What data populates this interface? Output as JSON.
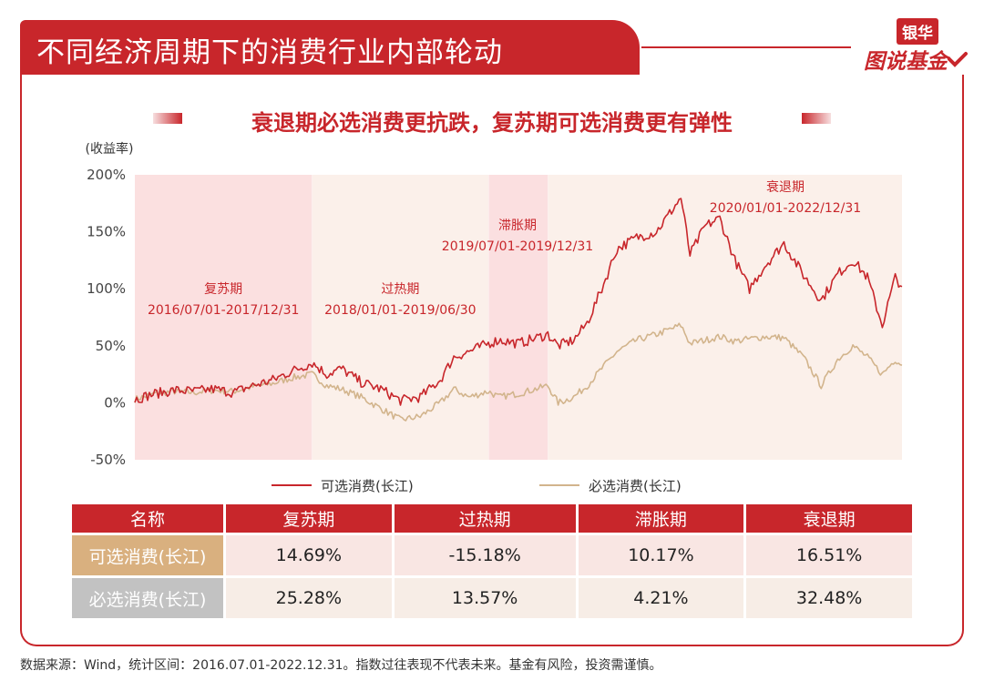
{
  "header": {
    "title": "不同经济周期下的消费行业内部轮动",
    "logo_top": "银华",
    "logo_bottom": "图说基金"
  },
  "subtitle": "衰退期必选消费更抗跌，复苏期可选消费更有弹性",
  "colors": {
    "accent": "#c8262b",
    "optional_series": "#c8262b",
    "staples_series": "#d2b48c",
    "recovery_bg": "#fbe0e0",
    "overheat_bg": "#fbf0ea",
    "stagflation_bg": "#fbdfe0",
    "recession_bg": "#fbf0ea"
  },
  "chart_data": {
    "type": "line",
    "ylabel": "(收益率)",
    "y_ticks": [
      "200%",
      "150%",
      "100%",
      "50%",
      "0%",
      "-50%"
    ],
    "ylim": [
      -50,
      200
    ],
    "xlim": [
      "2016-07-01",
      "2022-12-31"
    ],
    "periods": [
      {
        "name": "复苏期",
        "range": "2016/07/01-2017/12/31",
        "start": "2016-07-01",
        "end": "2017-12-31"
      },
      {
        "name": "过热期",
        "range": "2018/01/01-2019/06/30",
        "start": "2018-01-01",
        "end": "2019-06-30"
      },
      {
        "name": "滞胀期",
        "range": "2019/07/01-2019/12/31",
        "start": "2019-07-01",
        "end": "2019-12-31"
      },
      {
        "name": "衰退期",
        "range": "2020/01/01-2022/12/31",
        "start": "2020-01-01",
        "end": "2022-12-31"
      }
    ],
    "series": [
      {
        "name": "可选消费(长江)",
        "points": [
          [
            "2016-07-01",
            3
          ],
          [
            "2016-09-01",
            8
          ],
          [
            "2016-11-01",
            11
          ],
          [
            "2017-01-01",
            10
          ],
          [
            "2017-03-01",
            12
          ],
          [
            "2017-05-01",
            9
          ],
          [
            "2017-07-01",
            15
          ],
          [
            "2017-09-01",
            20
          ],
          [
            "2017-11-01",
            28
          ],
          [
            "2018-01-01",
            35
          ],
          [
            "2018-02-15",
            25
          ],
          [
            "2018-04-01",
            30
          ],
          [
            "2018-06-01",
            18
          ],
          [
            "2018-08-01",
            12
          ],
          [
            "2018-10-01",
            2
          ],
          [
            "2018-12-01",
            5
          ],
          [
            "2019-02-01",
            20
          ],
          [
            "2019-03-15",
            40
          ],
          [
            "2019-05-01",
            45
          ],
          [
            "2019-06-30",
            52
          ],
          [
            "2019-08-01",
            55
          ],
          [
            "2019-10-01",
            52
          ],
          [
            "2019-12-31",
            60
          ],
          [
            "2020-02-01",
            50
          ],
          [
            "2020-03-20",
            55
          ],
          [
            "2020-05-01",
            70
          ],
          [
            "2020-06-15",
            100
          ],
          [
            "2020-08-01",
            135
          ],
          [
            "2020-10-01",
            145
          ],
          [
            "2020-12-01",
            150
          ],
          [
            "2021-02-15",
            180
          ],
          [
            "2021-03-15",
            130
          ],
          [
            "2021-05-01",
            155
          ],
          [
            "2021-06-15",
            162
          ],
          [
            "2021-08-01",
            125
          ],
          [
            "2021-09-15",
            100
          ],
          [
            "2021-11-01",
            120
          ],
          [
            "2021-12-31",
            140
          ],
          [
            "2022-03-01",
            112
          ],
          [
            "2022-04-25",
            90
          ],
          [
            "2022-06-15",
            113
          ],
          [
            "2022-08-01",
            125
          ],
          [
            "2022-09-15",
            110
          ],
          [
            "2022-10-31",
            68
          ],
          [
            "2022-12-10",
            110
          ],
          [
            "2022-12-31",
            102
          ]
        ]
      },
      {
        "name": "必选消费(长江)",
        "points": [
          [
            "2016-07-01",
            3
          ],
          [
            "2016-09-01",
            8
          ],
          [
            "2016-11-01",
            10
          ],
          [
            "2017-01-01",
            9
          ],
          [
            "2017-03-01",
            11
          ],
          [
            "2017-05-01",
            10
          ],
          [
            "2017-07-01",
            14
          ],
          [
            "2017-09-01",
            17
          ],
          [
            "2017-11-01",
            22
          ],
          [
            "2018-01-01",
            25
          ],
          [
            "2018-02-15",
            15
          ],
          [
            "2018-04-01",
            12
          ],
          [
            "2018-06-01",
            5
          ],
          [
            "2018-08-01",
            -5
          ],
          [
            "2018-10-01",
            -15
          ],
          [
            "2018-12-01",
            -12
          ],
          [
            "2019-02-01",
            0
          ],
          [
            "2019-03-15",
            12
          ],
          [
            "2019-05-01",
            5
          ],
          [
            "2019-06-30",
            10
          ],
          [
            "2019-08-01",
            5
          ],
          [
            "2019-10-01",
            8
          ],
          [
            "2019-12-31",
            15
          ],
          [
            "2020-02-01",
            0
          ],
          [
            "2020-03-20",
            5
          ],
          [
            "2020-05-01",
            15
          ],
          [
            "2020-06-15",
            30
          ],
          [
            "2020-08-01",
            45
          ],
          [
            "2020-10-01",
            55
          ],
          [
            "2020-12-01",
            60
          ],
          [
            "2021-02-15",
            68
          ],
          [
            "2021-03-15",
            52
          ],
          [
            "2021-05-01",
            55
          ],
          [
            "2021-06-15",
            58
          ],
          [
            "2021-08-01",
            54
          ],
          [
            "2021-09-15",
            56
          ],
          [
            "2021-11-01",
            58
          ],
          [
            "2021-12-31",
            57
          ],
          [
            "2022-03-01",
            40
          ],
          [
            "2022-04-25",
            15
          ],
          [
            "2022-06-15",
            38
          ],
          [
            "2022-08-01",
            50
          ],
          [
            "2022-09-15",
            40
          ],
          [
            "2022-10-31",
            25
          ],
          [
            "2022-12-10",
            38
          ],
          [
            "2022-12-31",
            33
          ]
        ]
      }
    ]
  },
  "table": {
    "headers": [
      "名称",
      "复苏期",
      "过热期",
      "滞胀期",
      "衰退期"
    ],
    "rows": [
      {
        "name": "可选消费(长江)",
        "values": [
          "14.69%",
          "-15.18%",
          "10.17%",
          "16.51%"
        ]
      },
      {
        "name": "必选消费(长江)",
        "values": [
          "25.28%",
          "13.57%",
          "4.21%",
          "32.48%"
        ]
      }
    ]
  },
  "footer": "数据来源：Wind，统计区间：2016.07.01-2022.12.31。指数过往表现不代表未来。基金有风险，投资需谨慎。"
}
